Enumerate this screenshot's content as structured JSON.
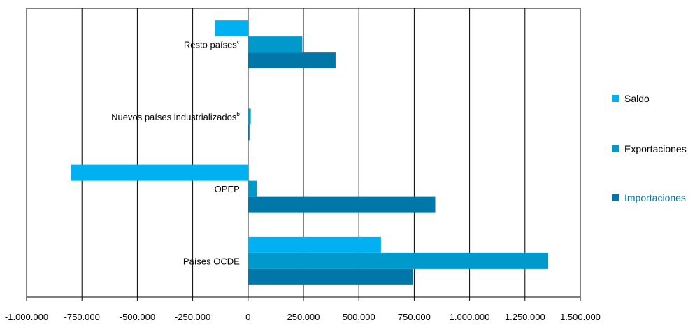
{
  "chart_data": {
    "type": "bar",
    "orientation": "horizontal",
    "categories": [
      {
        "label": "Resto países",
        "sup": "c"
      },
      {
        "label": "Nuevos países industrializados",
        "sup": "b"
      },
      {
        "label": "OPEP",
        "sup": ""
      },
      {
        "label": "Países OCDE",
        "sup": ""
      }
    ],
    "series": [
      {
        "name": "Saldo",
        "color": "#00b0f0",
        "values": [
          -150000,
          0,
          -800000,
          600000
        ]
      },
      {
        "name": "Exportaciones",
        "color": "#0099cc",
        "values": [
          245000,
          12000,
          40000,
          1355000
        ]
      },
      {
        "name": "Importaciones",
        "color": "#0077a8",
        "values": [
          395000,
          5000,
          845000,
          745000
        ]
      }
    ],
    "xlim": [
      -1000000,
      1500000
    ],
    "xticks": [
      -1000000,
      -750000,
      -500000,
      -250000,
      0,
      250000,
      500000,
      750000,
      1000000,
      1250000,
      1500000
    ],
    "tick_labels": [
      "-1.000.000",
      "-750.000",
      "-500.000",
      "-250.000",
      "0",
      "250.000",
      "500.000",
      "750.000",
      "1.000.000",
      "1.250.000",
      "1.500.000"
    ],
    "grid": true,
    "legend": {
      "position": "right",
      "text_colors": [
        "#000000",
        "#000000",
        "#0077a8"
      ]
    }
  }
}
